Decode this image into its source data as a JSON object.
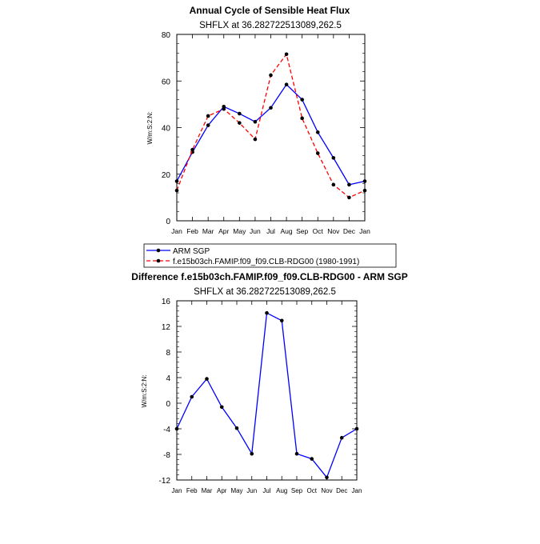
{
  "chart_data": [
    {
      "type": "line",
      "title": "Annual Cycle of Sensible Heat Flux",
      "subtitle": "SHFLX at 36.282722513089,262.5",
      "ylabel": "W/m:S:2:N:",
      "xlabel": "",
      "categories": [
        "Jan",
        "Feb",
        "Mar",
        "Apr",
        "May",
        "Jun",
        "Jul",
        "Aug",
        "Sep",
        "Oct",
        "Nov",
        "Dec",
        "Jan"
      ],
      "ylim": [
        0,
        80
      ],
      "yticks": [
        0,
        20,
        40,
        60,
        80
      ],
      "series": [
        {
          "name": "ARM SGP",
          "color": "#0000ff",
          "dash": "solid",
          "values": [
            17.0,
            29.5,
            41.0,
            49.0,
            46.0,
            42.5,
            48.5,
            58.5,
            52.0,
            38.0,
            27.0,
            15.5,
            17.0
          ]
        },
        {
          "name": "f.e15b03ch.FAMIP.f09_f09.CLB-RDG00 (1980-1991)",
          "color": "#ff0000",
          "dash": "dashed",
          "values": [
            13.0,
            30.5,
            45.0,
            48.0,
            42.0,
            35.0,
            62.5,
            71.5,
            44.0,
            29.0,
            15.5,
            10.0,
            13.0
          ]
        }
      ],
      "legend_position": "bottom"
    },
    {
      "type": "line",
      "title": "Difference f.e15b03ch.FAMIP.f09_f09.CLB-RDG00 - ARM SGP",
      "subtitle": "SHFLX at 36.282722513089,262.5",
      "ylabel": "W/m:S:2:N:",
      "xlabel": "",
      "categories": [
        "Jan",
        "Feb",
        "Mar",
        "Apr",
        "May",
        "Jun",
        "Jul",
        "Aug",
        "Sep",
        "Oct",
        "Nov",
        "Dec",
        "Jan"
      ],
      "ylim": [
        -12,
        16
      ],
      "yticks": [
        -12,
        -8,
        -4,
        0,
        4,
        8,
        12,
        16
      ],
      "series": [
        {
          "color": "#0000ff",
          "dash": "solid",
          "values": [
            -4.0,
            1.0,
            3.8,
            -0.6,
            -3.9,
            -7.9,
            14.1,
            12.9,
            -7.9,
            -8.7,
            -11.6,
            -5.4,
            -4.0
          ]
        }
      ]
    }
  ]
}
